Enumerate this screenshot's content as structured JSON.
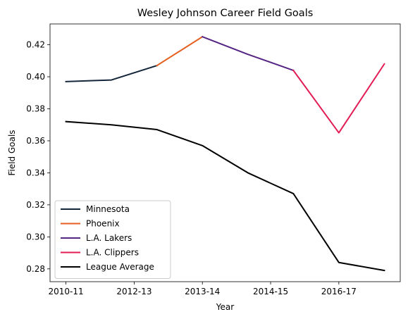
{
  "chart_data": {
    "type": "line",
    "title": "Wesley Johnson  Career Field Goals",
    "xlabel": "Year",
    "ylabel": "Field Goals",
    "x_ticks": [
      "2010-11",
      "2012-13",
      "2013-14",
      "2014-15",
      "2016-17"
    ],
    "ylim": [
      0.272,
      0.433
    ],
    "y_ticks": [
      0.28,
      0.3,
      0.32,
      0.34,
      0.36,
      0.38,
      0.4,
      0.42
    ],
    "grid": false,
    "legend_position": "lower-left",
    "series": [
      {
        "name": "Minnesota",
        "color": "#13263a",
        "x": [
          0,
          1,
          2
        ],
        "y": [
          0.397,
          0.398,
          0.407
        ]
      },
      {
        "name": "Phoenix",
        "color": "#e56020",
        "x": [
          2,
          3
        ],
        "y": [
          0.407,
          0.425
        ]
      },
      {
        "name": "L.A. Lakers",
        "color": "#552583",
        "x": [
          3,
          4,
          5
        ],
        "y": [
          0.425,
          0.414,
          0.404
        ]
      },
      {
        "name": "L.A. Clippers",
        "color": "#e31c54",
        "x": [
          5,
          6,
          7
        ],
        "y": [
          0.404,
          0.365,
          0.408
        ]
      },
      {
        "name": "League Average",
        "color": "#000000",
        "x": [
          0,
          1,
          2,
          3,
          4,
          5,
          6,
          7
        ],
        "y": [
          0.372,
          0.37,
          0.367,
          0.357,
          0.34,
          0.327,
          0.284,
          0.279
        ]
      }
    ]
  }
}
